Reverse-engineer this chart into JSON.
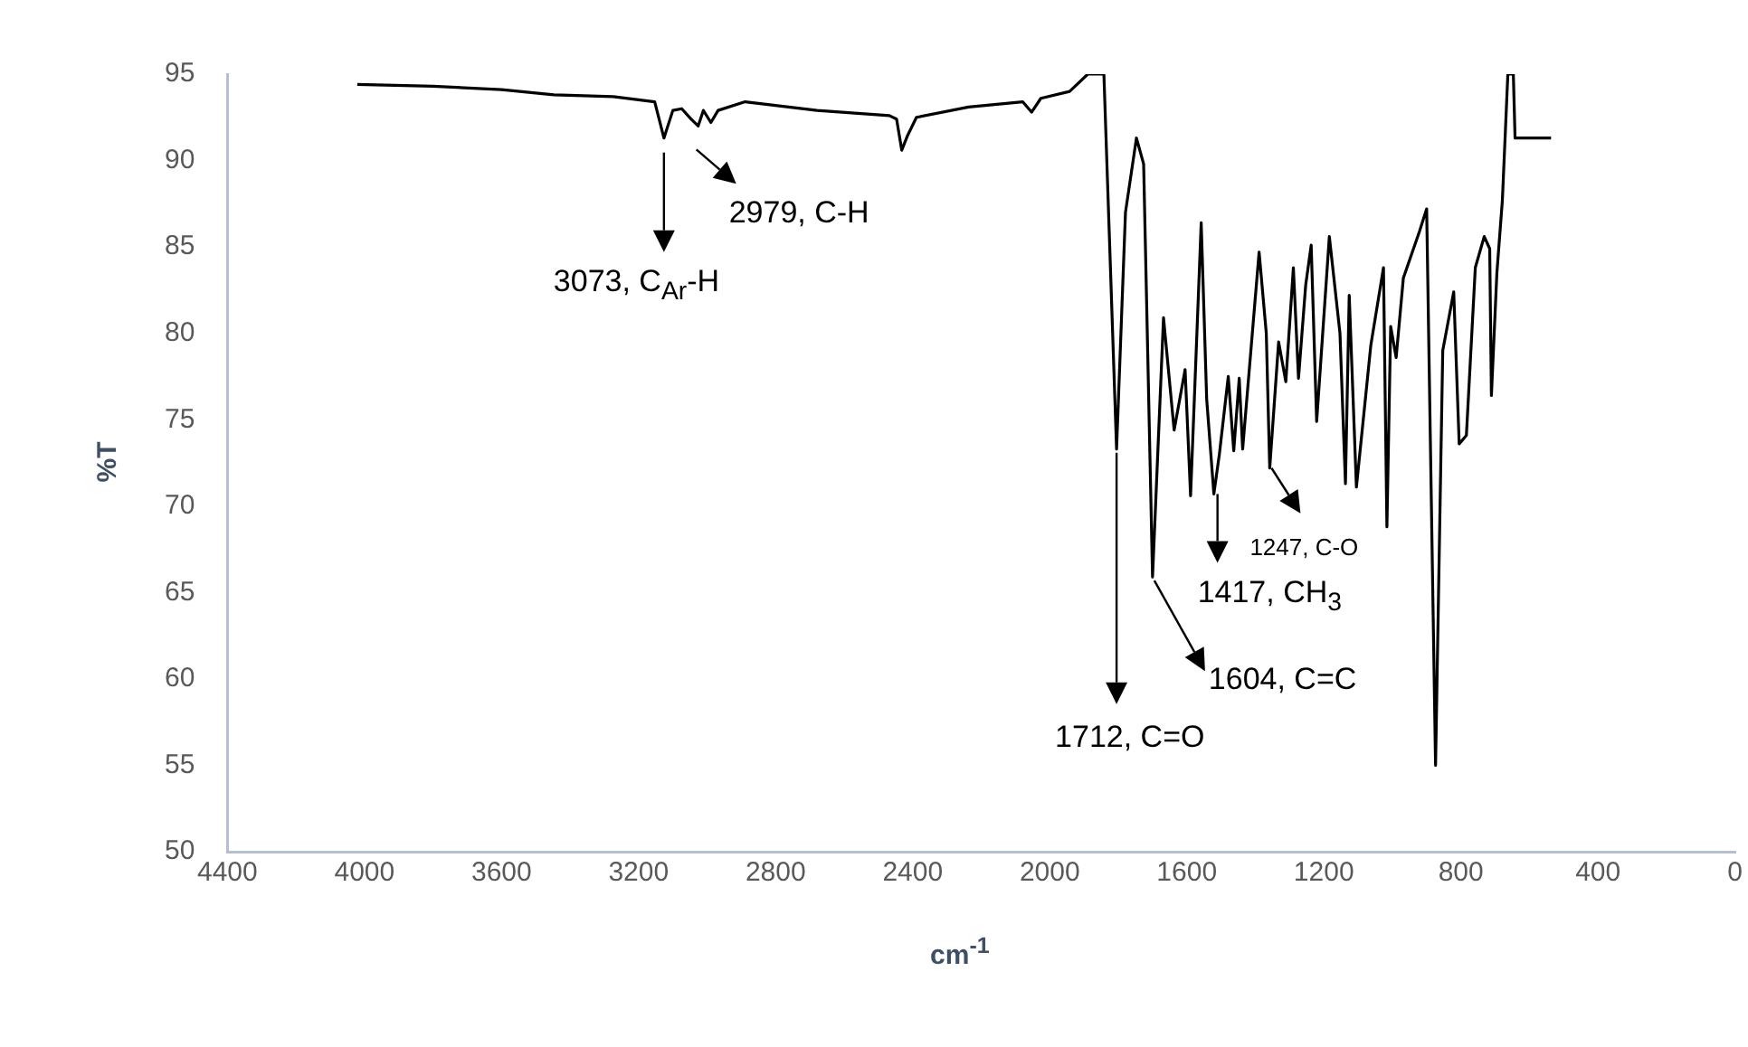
{
  "chart_data": {
    "type": "line",
    "xlabel": "cm$^{-1}$",
    "ylabel": "%T",
    "xlim": [
      4400,
      0
    ],
    "xticks": [
      4400,
      4000,
      3600,
      3200,
      2800,
      2400,
      2000,
      1600,
      1200,
      800,
      400,
      0
    ],
    "ylim": [
      50,
      95
    ],
    "yticks": [
      50,
      55,
      60,
      65,
      70,
      75,
      80,
      85,
      90,
      95
    ],
    "grid": false,
    "legend": false,
    "marker": "none",
    "line_style": "solid",
    "x": [
      4021,
      3800,
      3600,
      3447,
      3274,
      3153,
      3126,
      3100,
      3074,
      3047,
      3026,
      3011,
      2989,
      2968,
      2889,
      2679,
      2468,
      2447,
      2432,
      2416,
      2389,
      2237,
      2079,
      2053,
      2026,
      1942,
      1889,
      1842,
      1805,
      1779,
      1747,
      1726,
      1700,
      1668,
      1637,
      1605,
      1589,
      1558,
      1542,
      1521,
      1505,
      1479,
      1463,
      1447,
      1437,
      1389,
      1368,
      1358,
      1332,
      1311,
      1289,
      1274,
      1253,
      1237,
      1221,
      1184,
      1153,
      1137,
      1126,
      1105,
      1063,
      1026,
      1016,
      1005,
      989,
      968,
      921,
      900,
      874,
      853,
      821,
      805,
      784,
      758,
      732,
      716,
      711,
      695,
      679,
      663,
      647,
      642,
      537
    ],
    "series": [
      {
        "color": "#000000",
        "values": [
          94.4,
          94.3,
          94.1,
          93.8,
          93.7,
          93.4,
          91.3,
          92.9,
          93.0,
          92.4,
          92.0,
          92.9,
          92.2,
          92.9,
          93.4,
          92.9,
          92.6,
          92.4,
          90.6,
          91.4,
          92.5,
          93.1,
          93.4,
          92.8,
          93.6,
          94.0,
          95,
          95,
          73.3,
          87.0,
          91.3,
          89.8,
          65.9,
          80.9,
          74.4,
          77.9,
          70.6,
          86.4,
          76.2,
          70.7,
          73.0,
          77.5,
          73.2,
          77.4,
          73.3,
          84.7,
          80.0,
          72.2,
          79.5,
          77.2,
          83.8,
          77.4,
          82.8,
          85.1,
          74.9,
          85.6,
          80.0,
          71.3,
          82.2,
          71.1,
          79.3,
          83.8,
          68.8,
          80.4,
          78.6,
          83.2,
          85.9,
          87.2,
          55.0,
          79.0,
          82.4,
          73.6,
          74.1,
          83.8,
          85.6,
          84.9,
          76.4,
          83.5,
          87.7,
          95,
          95,
          91.3,
          91.3
        ]
      }
    ],
    "annotations": [
      {
        "text": "3073, C$_{Ar}$-H",
        "x": 3126,
        "y": 91.3
      },
      {
        "text": "2979, C-H",
        "x": 3026,
        "y": 92.0
      },
      {
        "text": "1712, C=O",
        "x": 1805,
        "y": 73.3
      },
      {
        "text": "1604, C=C",
        "x": 1700,
        "y": 65.9
      },
      {
        "text": "1417, CH$_{3}$",
        "x": 1521,
        "y": 70.7
      },
      {
        "text": "1247, C-O",
        "x": 1358,
        "y": 72.2
      }
    ]
  }
}
